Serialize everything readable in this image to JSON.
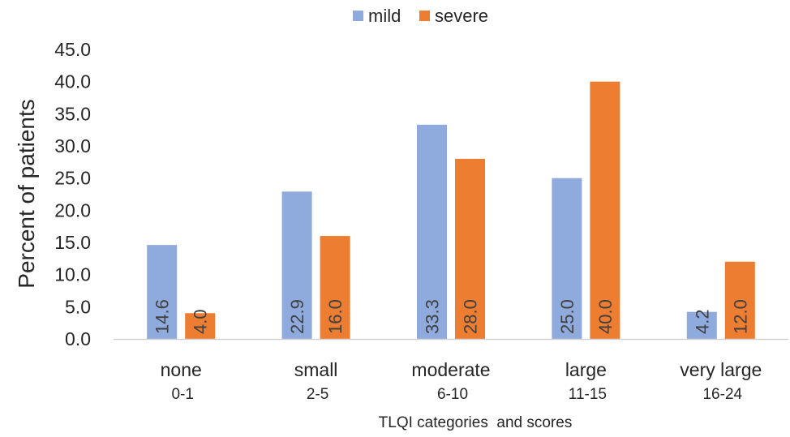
{
  "chart_data": {
    "type": "bar",
    "categories": [
      {
        "name": "none",
        "range": "0-1"
      },
      {
        "name": "small",
        "range": "2-5"
      },
      {
        "name": "moderate",
        "range": "6-10"
      },
      {
        "name": "large",
        "range": "11-15"
      },
      {
        "name": "very large",
        "range": "16-24"
      }
    ],
    "series": [
      {
        "name": "mild",
        "color": "#8faadc",
        "values": [
          14.6,
          22.9,
          33.3,
          25.0,
          4.2
        ]
      },
      {
        "name": "severe",
        "color": "#ed7d31",
        "values": [
          4.0,
          16.0,
          28.0,
          40.0,
          12.0
        ]
      }
    ],
    "ylabel": "Percent of patients",
    "xlabel": "TLQI categories  and scores",
    "ylim": [
      0,
      45
    ],
    "yticks": [
      "0.0",
      "5.0",
      "10.0",
      "15.0",
      "20.0",
      "25.0",
      "30.0",
      "35.0",
      "40.0",
      "45.0"
    ],
    "grid": false,
    "legend": "top-center",
    "data_labels": "inside-bar-rotated"
  }
}
